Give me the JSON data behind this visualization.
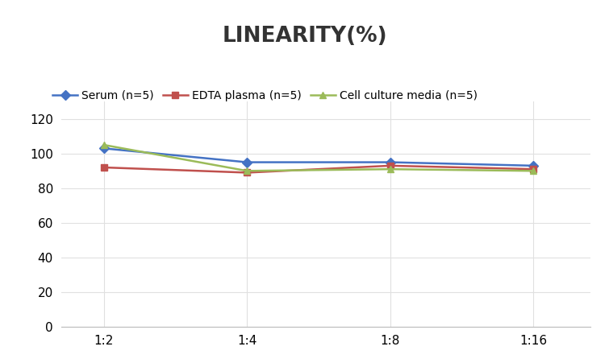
{
  "title": "LINEARITY(%)",
  "title_fontsize": 19,
  "title_fontweight": "bold",
  "x_labels": [
    "1:2",
    "1:4",
    "1:8",
    "1:16"
  ],
  "x_positions": [
    0,
    1,
    2,
    3
  ],
  "serum": [
    103,
    95,
    95,
    93
  ],
  "edta_plasma": [
    92,
    89,
    93,
    91
  ],
  "cell_culture": [
    105,
    90,
    91,
    90
  ],
  "serum_color": "#4472C4",
  "edta_color": "#C0504D",
  "cell_color": "#9BBB59",
  "legend_labels": [
    "Serum (n=5)",
    "EDTA plasma (n=5)",
    "Cell culture media (n=5)"
  ],
  "ylim": [
    0,
    130
  ],
  "yticks": [
    0,
    20,
    40,
    60,
    80,
    100,
    120
  ],
  "grid_color": "#E0E0E0",
  "background_color": "#FFFFFF",
  "marker_size": 6,
  "linewidth": 1.8,
  "tick_fontsize": 11
}
